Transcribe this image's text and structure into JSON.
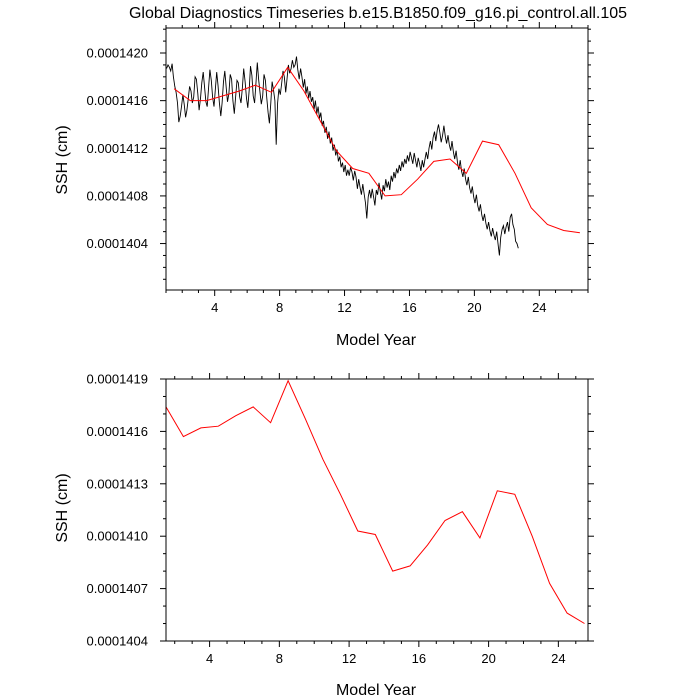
{
  "chart_data": [
    {
      "type": "line",
      "title": "Global Diagnostics Timeseries b.e15.B1850.f09_g16.pi_control.all.105",
      "xlabel": "Model Year",
      "ylabel": "SSH (cm)",
      "xlim": [
        1,
        27
      ],
      "ylim": [
        0.00014001,
        0.00014221
      ],
      "xticks": [
        4,
        8,
        12,
        16,
        20,
        24
      ],
      "xtick_labels": [
        "4",
        "8",
        "12",
        "16",
        "20",
        "24"
      ],
      "yticks": [
        0.0001404,
        0.0001408,
        0.0001412,
        0.0001416,
        0.000142
      ],
      "ytick_labels": [
        "0.0001404",
        "0.0001408",
        "0.0001412",
        "0.0001416",
        "0.0001420"
      ],
      "series": [
        {
          "style": "monthly",
          "color": "#000000",
          "x_start": 1.04,
          "x_step": 0.0833333,
          "values": [
            0.00014187,
            0.0001419,
            0.00014188,
            0.00014185,
            0.00014191,
            0.0001418,
            0.00014172,
            0.00014167,
            0.00014158,
            0.00014142,
            0.00014147,
            0.00014155,
            0.00014165,
            0.00014157,
            0.00014146,
            0.00014152,
            0.00014162,
            0.00014172,
            0.00014168,
            0.00014158,
            0.00014163,
            0.0001418,
            0.00014178,
            0.00014166,
            0.00014152,
            0.00014162,
            0.00014175,
            0.00014184,
            0.00014172,
            0.00014159,
            0.00014155,
            0.00014171,
            0.00014186,
            0.00014177,
            0.00014163,
            0.00014155,
            0.00014169,
            0.00014184,
            0.00014173,
            0.00014158,
            0.00014147,
            0.00014158,
            0.00014176,
            0.00014185,
            0.00014171,
            0.00014159,
            0.00014166,
            0.00014182,
            0.00014178,
            0.0001416,
            0.00014149,
            0.00014163,
            0.00014177,
            0.00014175,
            0.00014163,
            0.00014158,
            0.00014171,
            0.00014187,
            0.00014176,
            0.00014162,
            0.00014154,
            0.00014169,
            0.00014189,
            0.00014181,
            0.00014164,
            0.00014158,
            0.00014174,
            0.00014192,
            0.00014178,
            0.00014167,
            0.00014157,
            0.00014164,
            0.00014182,
            0.00014177,
            0.00014163,
            0.0001415,
            0.00014141,
            0.00014158,
            0.00014176,
            0.00014169,
            0.0001416,
            0.00014123,
            0.00014158,
            0.0001417,
            0.00014165,
            0.00014174,
            0.00014185,
            0.0001418,
            0.00014167,
            0.00014178,
            0.0001419,
            0.00014183,
            0.00014187,
            0.00014194,
            0.00014188,
            0.0001419,
            0.00014197,
            0.00014186,
            0.00014178,
            0.00014187,
            0.0001418,
            0.00014171,
            0.00014178,
            0.00014166,
            0.00014172,
            0.00014162,
            0.00014168,
            0.00014159,
            0.00014163,
            0.00014153,
            0.0001416,
            0.00014149,
            0.00014155,
            0.00014145,
            0.0001415,
            0.00014139,
            0.00014143,
            0.00014133,
            0.00014138,
            0.00014128,
            0.00014134,
            0.00014124,
            0.00014129,
            0.00014118,
            0.00014123,
            0.00014114,
            0.00014119,
            0.00014109,
            0.00014113,
            0.00014104,
            0.00014108,
            0.000141,
            0.00014106,
            0.00014097,
            0.00014102,
            0.00014097,
            0.00014104,
            0.000141,
            0.00014093,
            0.00014101,
            0.00014096,
            0.00014086,
            0.00014094,
            0.00014087,
            0.00014081,
            0.0001409,
            0.00014082,
            0.00014074,
            0.00014061,
            0.00014079,
            0.00014085,
            0.00014078,
            0.00014086,
            0.00014079,
            0.00014072,
            0.00014085,
            0.00014081,
            0.00014091,
            0.00014083,
            0.00014077,
            0.00014089,
            0.00014084,
            0.00014094,
            0.00014087,
            0.00014092,
            0.00014085,
            0.00014097,
            0.00014092,
            0.000141,
            0.00014095,
            0.00014103,
            0.00014099,
            0.00014106,
            0.00014101,
            0.00014109,
            0.00014104,
            0.00014111,
            0.00014107,
            0.00014114,
            0.00014109,
            0.00014117,
            0.00014112,
            0.00014107,
            0.00014116,
            0.0001411,
            0.00014104,
            0.00014112,
            0.00014107,
            0.00014101,
            0.0001411,
            0.00014104,
            0.00014111,
            0.00014117,
            0.00014111,
            0.0001412,
            0.00014126,
            0.00014119,
            0.00014129,
            0.00014134,
            0.00014126,
            0.00014135,
            0.0001414,
            0.00014133,
            0.00014125,
            0.00014131,
            0.00014139,
            0.0001413,
            0.00014124,
            0.00014131,
            0.00014123,
            0.00014118,
            0.00014126,
            0.00014117,
            0.00014111,
            0.00014118,
            0.00014108,
            0.00014102,
            0.0001411,
            0.00014101,
            0.00014096,
            0.00014103,
            0.00014094,
            0.00014089,
            0.00014096,
            0.00014087,
            0.00014082,
            0.00014088,
            0.00014079,
            0.00014074,
            0.00014081,
            0.00014072,
            0.00014067,
            0.00014073,
            0.00014064,
            0.00014059,
            0.00014065,
            0.00014057,
            0.00014052,
            0.00014058,
            0.00014051,
            0.00014046,
            0.00014053,
            0.00014047,
            0.00014043,
            0.0001405,
            0.0001404,
            0.0001403,
            0.00014045,
            0.00014052,
            0.00014055,
            0.00014048,
            0.00014054,
            0.00014058,
            0.0001405,
            0.00014062,
            0.00014065,
            0.00014056,
            0.00014052,
            0.00014042,
            0.0001404,
            0.00014036
          ]
        },
        {
          "style": "annual-smooth",
          "color": "#ff0000",
          "x": [
            1.5,
            2.5,
            3.5,
            4.5,
            5.5,
            6.5,
            7.5,
            8.5,
            9.5,
            10.5,
            11.5,
            12.5,
            13.5,
            14.5,
            15.5,
            16.5,
            17.5,
            18.5,
            19.5,
            20.5,
            21.5,
            22.5,
            23.5,
            24.5,
            25.5,
            26.5
          ],
          "values": [
            0.0001417,
            0.0001416,
            0.0001416,
            0.00014164,
            0.00014168,
            0.00014173,
            0.00014167,
            0.00014188,
            0.00014168,
            0.00014143,
            0.00014118,
            0.00014103,
            0.00014099,
            0.0001408,
            0.00014081,
            0.00014094,
            0.00014109,
            0.00014111,
            0.00014099,
            0.00014126,
            0.00014123,
            0.00014099,
            0.0001407,
            0.00014056,
            0.00014051,
            0.00014049
          ]
        }
      ]
    },
    {
      "type": "line",
      "title": "",
      "xlabel": "Model Year",
      "ylabel": "SSH (cm)",
      "xlim": [
        1.5,
        25.7
      ],
      "ylim": [
        0.0001404,
        0.0001419
      ],
      "xticks": [
        4,
        8,
        12,
        16,
        20,
        24
      ],
      "xtick_labels": [
        "4",
        "8",
        "12",
        "16",
        "20",
        "24"
      ],
      "yticks": [
        0.0001404,
        0.0001407,
        0.000141,
        0.0001413,
        0.0001416,
        0.0001419
      ],
      "ytick_labels": [
        "0.0001404",
        "0.0001407",
        "0.0001410",
        "0.0001413",
        "0.0001416",
        "0.0001419"
      ],
      "series": [
        {
          "style": "annual",
          "color": "#ff0000",
          "x": [
            1.5,
            2.5,
            3.5,
            4.5,
            5.5,
            6.5,
            7.5,
            8.5,
            9.5,
            10.5,
            11.5,
            12.5,
            13.5,
            14.5,
            15.5,
            16.5,
            17.5,
            18.5,
            19.5,
            20.5,
            21.5,
            22.5,
            23.5,
            24.5,
            25.5
          ],
          "values": [
            0.00014174,
            0.00014157,
            0.00014162,
            0.00014163,
            0.00014169,
            0.00014174,
            0.00014165,
            0.00014189,
            0.00014167,
            0.00014144,
            0.00014124,
            0.00014103,
            0.00014101,
            0.0001408,
            0.00014083,
            0.00014095,
            0.00014109,
            0.00014114,
            0.00014099,
            0.00014126,
            0.00014124,
            0.000141,
            0.00014073,
            0.00014056,
            0.0001405
          ]
        }
      ]
    }
  ]
}
